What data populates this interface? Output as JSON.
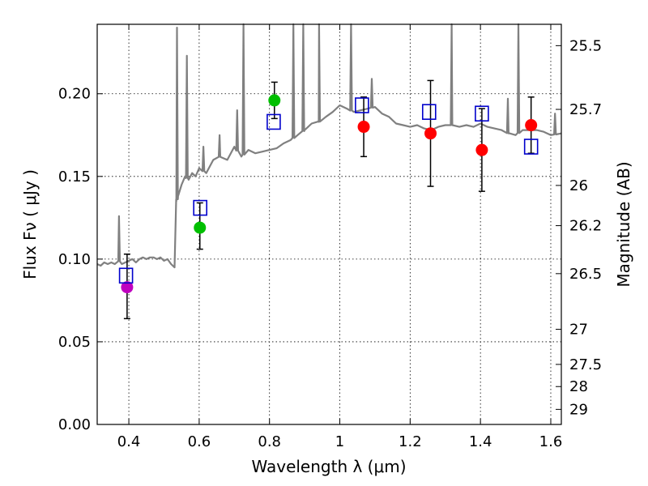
{
  "chart_data": {
    "type": "scatter",
    "title": "",
    "xlabel": "Wavelength  λ (μm)",
    "ylabel": "Flux  Fν  ( μJy )",
    "y2label": "Magnitude (AB)",
    "xlim": [
      0.31,
      1.63
    ],
    "ylim": [
      0.0,
      0.242
    ],
    "x_ticks": [
      0.4,
      0.6,
      0.8,
      1.0,
      1.2,
      1.4,
      1.6
    ],
    "x_tick_labels": [
      "0.4",
      "0.6",
      "0.8",
      "1",
      "1.2",
      "1.4",
      "1.6"
    ],
    "y_ticks": [
      0.0,
      0.05,
      0.1,
      0.15,
      0.2
    ],
    "y_tick_labels": [
      "0.00",
      "0.05",
      "0.10",
      "0.15",
      "0.20"
    ],
    "y2_ticks": [
      "25.5",
      "25.7",
      "26",
      "26.2",
      "26.5",
      "27",
      "27.5",
      "28",
      "29"
    ],
    "grid": true,
    "colors": {
      "template": "#808080",
      "model_box": "#0000cc",
      "violet": "#bf00bf",
      "green": "#00bf00",
      "red": "#ff0000",
      "errorbar": "#000000"
    },
    "observed": [
      {
        "x": 0.395,
        "y": 0.083,
        "yerr_low": 0.019,
        "yerr_high": 0.02,
        "color": "violet"
      },
      {
        "x": 0.602,
        "y": 0.119,
        "yerr_low": 0.013,
        "yerr_high": 0.015,
        "color": "green"
      },
      {
        "x": 0.814,
        "y": 0.196,
        "yerr_low": 0.011,
        "yerr_high": 0.011,
        "color": "green"
      },
      {
        "x": 1.068,
        "y": 0.18,
        "yerr_low": 0.018,
        "yerr_high": 0.018,
        "color": "red"
      },
      {
        "x": 1.258,
        "y": 0.176,
        "yerr_low": 0.032,
        "yerr_high": 0.032,
        "color": "red"
      },
      {
        "x": 1.404,
        "y": 0.166,
        "yerr_low": 0.025,
        "yerr_high": 0.025,
        "color": "red"
      },
      {
        "x": 1.544,
        "y": 0.181,
        "yerr_low": 0.017,
        "yerr_high": 0.017,
        "color": "red"
      }
    ],
    "model_photometry": [
      {
        "x": 0.392,
        "y": 0.09
      },
      {
        "x": 0.603,
        "y": 0.131
      },
      {
        "x": 0.812,
        "y": 0.183
      },
      {
        "x": 1.063,
        "y": 0.193
      },
      {
        "x": 1.254,
        "y": 0.189
      },
      {
        "x": 1.404,
        "y": 0.188
      },
      {
        "x": 1.544,
        "y": 0.168
      }
    ],
    "template_spectrum": [
      [
        0.31,
        0.097
      ],
      [
        0.32,
        0.096
      ],
      [
        0.33,
        0.098
      ],
      [
        0.34,
        0.097
      ],
      [
        0.35,
        0.098
      ],
      [
        0.36,
        0.097
      ],
      [
        0.37,
        0.099
      ],
      [
        0.38,
        0.097
      ],
      [
        0.39,
        0.098
      ],
      [
        0.4,
        0.099
      ],
      [
        0.41,
        0.1
      ],
      [
        0.42,
        0.098
      ],
      [
        0.43,
        0.1
      ],
      [
        0.44,
        0.101
      ],
      [
        0.45,
        0.1
      ],
      [
        0.46,
        0.101
      ],
      [
        0.47,
        0.101
      ],
      [
        0.48,
        0.1
      ],
      [
        0.49,
        0.101
      ],
      [
        0.5,
        0.099
      ],
      [
        0.51,
        0.1
      ],
      [
        0.52,
        0.097
      ],
      [
        0.53,
        0.095
      ],
      [
        0.535,
        0.135
      ],
      [
        0.54,
        0.138
      ],
      [
        0.55,
        0.145
      ],
      [
        0.56,
        0.15
      ],
      [
        0.57,
        0.148
      ],
      [
        0.58,
        0.152
      ],
      [
        0.59,
        0.15
      ],
      [
        0.6,
        0.155
      ],
      [
        0.62,
        0.152
      ],
      [
        0.64,
        0.16
      ],
      [
        0.66,
        0.162
      ],
      [
        0.68,
        0.16
      ],
      [
        0.7,
        0.168
      ],
      [
        0.72,
        0.162
      ],
      [
        0.74,
        0.166
      ],
      [
        0.76,
        0.164
      ],
      [
        0.78,
        0.165
      ],
      [
        0.8,
        0.166
      ],
      [
        0.82,
        0.167
      ],
      [
        0.84,
        0.17
      ],
      [
        0.86,
        0.172
      ],
      [
        0.88,
        0.175
      ],
      [
        0.9,
        0.178
      ],
      [
        0.92,
        0.182
      ],
      [
        0.94,
        0.183
      ],
      [
        0.96,
        0.186
      ],
      [
        0.98,
        0.189
      ],
      [
        1.0,
        0.193
      ],
      [
        1.02,
        0.191
      ],
      [
        1.04,
        0.189
      ],
      [
        1.06,
        0.19
      ],
      [
        1.08,
        0.191
      ],
      [
        1.1,
        0.192
      ],
      [
        1.12,
        0.188
      ],
      [
        1.14,
        0.186
      ],
      [
        1.16,
        0.182
      ],
      [
        1.18,
        0.181
      ],
      [
        1.2,
        0.18
      ],
      [
        1.22,
        0.181
      ],
      [
        1.24,
        0.179
      ],
      [
        1.26,
        0.178
      ],
      [
        1.28,
        0.18
      ],
      [
        1.3,
        0.181
      ],
      [
        1.32,
        0.181
      ],
      [
        1.34,
        0.18
      ],
      [
        1.36,
        0.181
      ],
      [
        1.38,
        0.18
      ],
      [
        1.4,
        0.182
      ],
      [
        1.42,
        0.18
      ],
      [
        1.44,
        0.179
      ],
      [
        1.46,
        0.178
      ],
      [
        1.48,
        0.176
      ],
      [
        1.5,
        0.175
      ],
      [
        1.52,
        0.178
      ],
      [
        1.54,
        0.178
      ],
      [
        1.56,
        0.178
      ],
      [
        1.58,
        0.177
      ],
      [
        1.6,
        0.175
      ],
      [
        1.63,
        0.176
      ]
    ],
    "template_emission_lines": [
      {
        "x": 0.372,
        "y": 0.126
      },
      {
        "x": 0.537,
        "y": 0.24
      },
      {
        "x": 0.565,
        "y": 0.223
      },
      {
        "x": 0.612,
        "y": 0.168
      },
      {
        "x": 0.658,
        "y": 0.175
      },
      {
        "x": 0.708,
        "y": 0.19
      },
      {
        "x": 0.726,
        "y": 0.242
      },
      {
        "x": 0.868,
        "y": 0.242
      },
      {
        "x": 0.896,
        "y": 0.242
      },
      {
        "x": 0.941,
        "y": 0.242
      },
      {
        "x": 1.032,
        "y": 0.242
      },
      {
        "x": 1.091,
        "y": 0.209
      },
      {
        "x": 1.318,
        "y": 0.242
      },
      {
        "x": 1.478,
        "y": 0.197
      },
      {
        "x": 1.508,
        "y": 0.242
      },
      {
        "x": 1.612,
        "y": 0.188
      }
    ]
  }
}
